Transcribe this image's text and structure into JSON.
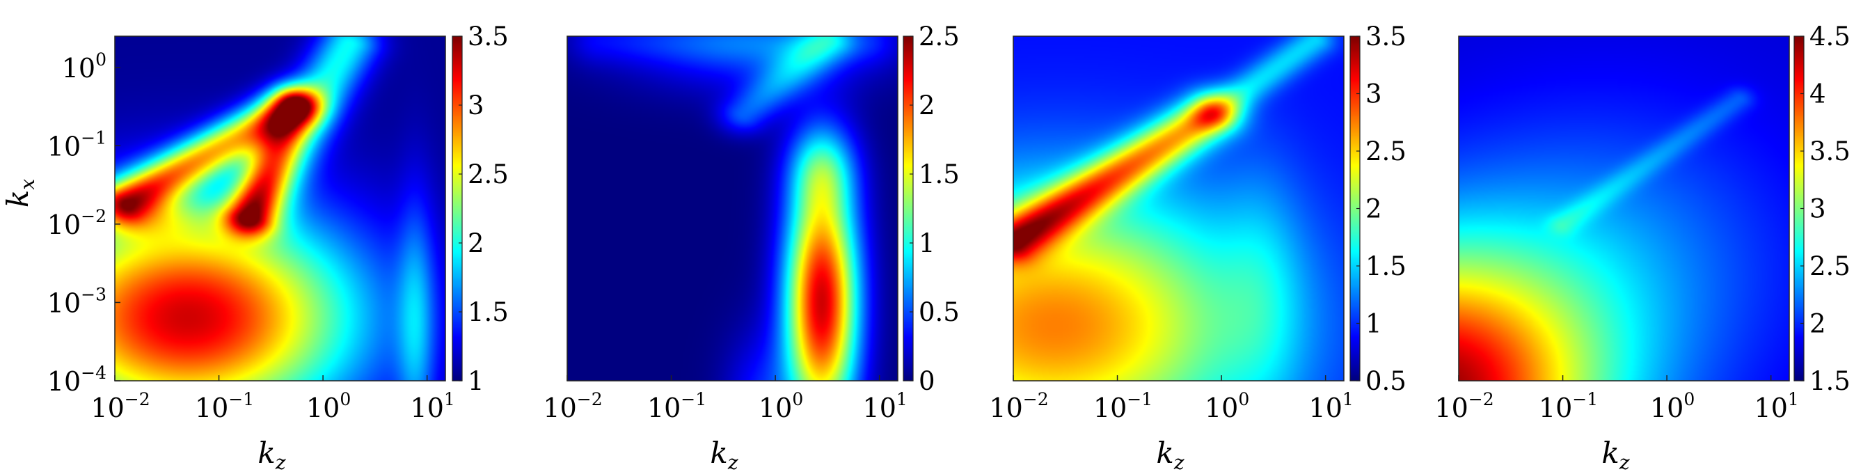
{
  "chart_data": [
    {
      "type": "heatmap",
      "xlabel": "k",
      "xlabel_sub": "z",
      "ylabel": "k",
      "ylabel_sub": "x",
      "x_scale": "log",
      "y_scale": "log",
      "xlim": [
        0.01,
        15
      ],
      "ylim": [
        0.0001,
        2.5
      ],
      "xticks": [
        {
          "base": "10",
          "exp": "−2",
          "value": 0.01
        },
        {
          "base": "10",
          "exp": "−1",
          "value": 0.1
        },
        {
          "base": "10",
          "exp": "0",
          "value": 1
        },
        {
          "base": "10",
          "exp": "1",
          "value": 10
        }
      ],
      "yticks": [
        {
          "base": "10",
          "exp": "−4",
          "value": 0.0001
        },
        {
          "base": "10",
          "exp": "−3",
          "value": 0.001
        },
        {
          "base": "10",
          "exp": "−2",
          "value": 0.01
        },
        {
          "base": "10",
          "exp": "−1",
          "value": 0.1
        },
        {
          "base": "10",
          "exp": "0",
          "value": 1
        }
      ],
      "colormap": "jet",
      "colorbar": {
        "min": 1,
        "max": 3.5,
        "ticks": [
          "1",
          "1.5",
          "2",
          "2.5",
          "3",
          "3.5"
        ],
        "tick_values": [
          1,
          1.5,
          2,
          2.5,
          3,
          3.5
        ]
      },
      "field": {
        "base": 1.05,
        "blobs": [
          {
            "x": -1.3,
            "y": -3.2,
            "sx": 1.6,
            "sy": 1.4,
            "a": 2.25
          },
          {
            "x": -1.7,
            "y": -1.9,
            "sx": 0.55,
            "sy": 0.32,
            "a": 0.55
          },
          {
            "x": 0.9,
            "y": -3.3,
            "sx": 0.18,
            "sy": 1.7,
            "a": 0.5
          }
        ],
        "ridges": [
          {
            "x0": -1.9,
            "y0": -1.7,
            "x1": -0.3,
            "y1": -0.5,
            "w": 0.27,
            "a": 1.5
          },
          {
            "x0": -0.3,
            "y0": -0.5,
            "x1": -0.7,
            "y1": -1.9,
            "w": 0.23,
            "a": 0.9
          },
          {
            "x0": -0.7,
            "y0": -1.9,
            "x1": 0.25,
            "y1": 0.3,
            "w": 0.3,
            "a": 0.9
          }
        ]
      }
    },
    {
      "type": "heatmap",
      "xlabel": "k",
      "xlabel_sub": "z",
      "x_scale": "log",
      "y_scale": "log",
      "xlim": [
        0.01,
        15
      ],
      "ylim": [
        0.0001,
        2.5
      ],
      "xticks": [
        {
          "base": "10",
          "exp": "−2",
          "value": 0.01
        },
        {
          "base": "10",
          "exp": "−1",
          "value": 0.1
        },
        {
          "base": "10",
          "exp": "0",
          "value": 1
        },
        {
          "base": "10",
          "exp": "1",
          "value": 10
        }
      ],
      "colormap": "jet",
      "colorbar": {
        "min": 0,
        "max": 2.5,
        "ticks": [
          "0",
          "0.5",
          "1",
          "1.5",
          "2",
          "2.5"
        ],
        "tick_values": [
          0,
          0.5,
          1,
          1.5,
          2,
          2.5
        ]
      },
      "field": {
        "base": 0.0,
        "blobs": [
          {
            "x": 0.45,
            "y": -3.0,
            "sx": 0.35,
            "sy": 1.6,
            "a": 2.3
          },
          {
            "x": 0.45,
            "y": -1.3,
            "sx": 0.32,
            "sy": 0.55,
            "a": 0.6
          },
          {
            "x": -0.15,
            "y": -4.3,
            "sx": 0.35,
            "sy": 0.9,
            "a": 0.35
          },
          {
            "x": -0.2,
            "y": 0.2,
            "sx": 1.2,
            "sy": 0.55,
            "a": 0.4
          }
        ],
        "ridges": [
          {
            "x0": -1.7,
            "y0": 0.35,
            "x1": 0.9,
            "y1": 0.35,
            "w": 0.3,
            "a": 0.25
          },
          {
            "x0": -0.3,
            "y0": -0.6,
            "x1": 0.5,
            "y1": 0.35,
            "w": 0.25,
            "a": 0.5
          }
        ]
      }
    },
    {
      "type": "heatmap",
      "xlabel": "k",
      "xlabel_sub": "z",
      "x_scale": "log",
      "y_scale": "log",
      "xlim": [
        0.01,
        15
      ],
      "ylim": [
        0.0001,
        2.5
      ],
      "xticks": [
        {
          "base": "10",
          "exp": "−2",
          "value": 0.01
        },
        {
          "base": "10",
          "exp": "−1",
          "value": 0.1
        },
        {
          "base": "10",
          "exp": "0",
          "value": 1
        },
        {
          "base": "10",
          "exp": "1",
          "value": 10
        }
      ],
      "colormap": "jet",
      "colorbar": {
        "min": 0.5,
        "max": 3.5,
        "ticks": [
          "0.5",
          "1",
          "1.5",
          "2",
          "2.5",
          "3",
          "3.5"
        ],
        "tick_values": [
          0.5,
          1,
          1.5,
          2,
          2.5,
          3,
          3.5
        ]
      },
      "field": {
        "base": 0.9,
        "blobs": [
          {
            "x": -1.6,
            "y": -3.3,
            "sx": 1.9,
            "sy": 1.7,
            "a": 1.85
          },
          {
            "x": 0.4,
            "y": -2.8,
            "sx": 0.4,
            "sy": 1.6,
            "a": 0.3
          }
        ],
        "ridges": [
          {
            "x0": -2.0,
            "y0": -2.2,
            "x1": -0.1,
            "y1": -0.6,
            "w": 0.28,
            "a": 1.6
          },
          {
            "x0": -0.1,
            "y0": -0.6,
            "x1": 0.9,
            "y1": 0.35,
            "w": 0.2,
            "a": 0.6
          }
        ]
      }
    },
    {
      "type": "heatmap",
      "xlabel": "k",
      "xlabel_sub": "z",
      "x_scale": "log",
      "y_scale": "log",
      "xlim": [
        0.01,
        15
      ],
      "ylim": [
        0.0001,
        2.5
      ],
      "xticks": [
        {
          "base": "10",
          "exp": "−2",
          "value": 0.01
        },
        {
          "base": "10",
          "exp": "−1",
          "value": 0.1
        },
        {
          "base": "10",
          "exp": "0",
          "value": 1
        },
        {
          "base": "10",
          "exp": "1",
          "value": 10
        }
      ],
      "colormap": "jet",
      "colorbar": {
        "min": 1.5,
        "max": 4.5,
        "ticks": [
          "1.5",
          "2",
          "2.5",
          "3",
          "3.5",
          "4",
          "4.5"
        ],
        "tick_values": [
          1.5,
          2,
          2.5,
          3,
          3.5,
          4,
          4.5
        ]
      },
      "field": {
        "base": 1.75,
        "blobs": [
          {
            "x": -2.3,
            "y": -4.2,
            "sx": 1.6,
            "sy": 1.8,
            "a": 2.6
          },
          {
            "x": -0.6,
            "y": -2.5,
            "sx": 1.8,
            "sy": 2.0,
            "a": 0.5
          }
        ],
        "ridges": [
          {
            "x0": -1.0,
            "y0": -2.0,
            "x1": 0.7,
            "y1": -0.4,
            "w": 0.15,
            "a": 0.3
          }
        ]
      }
    }
  ]
}
